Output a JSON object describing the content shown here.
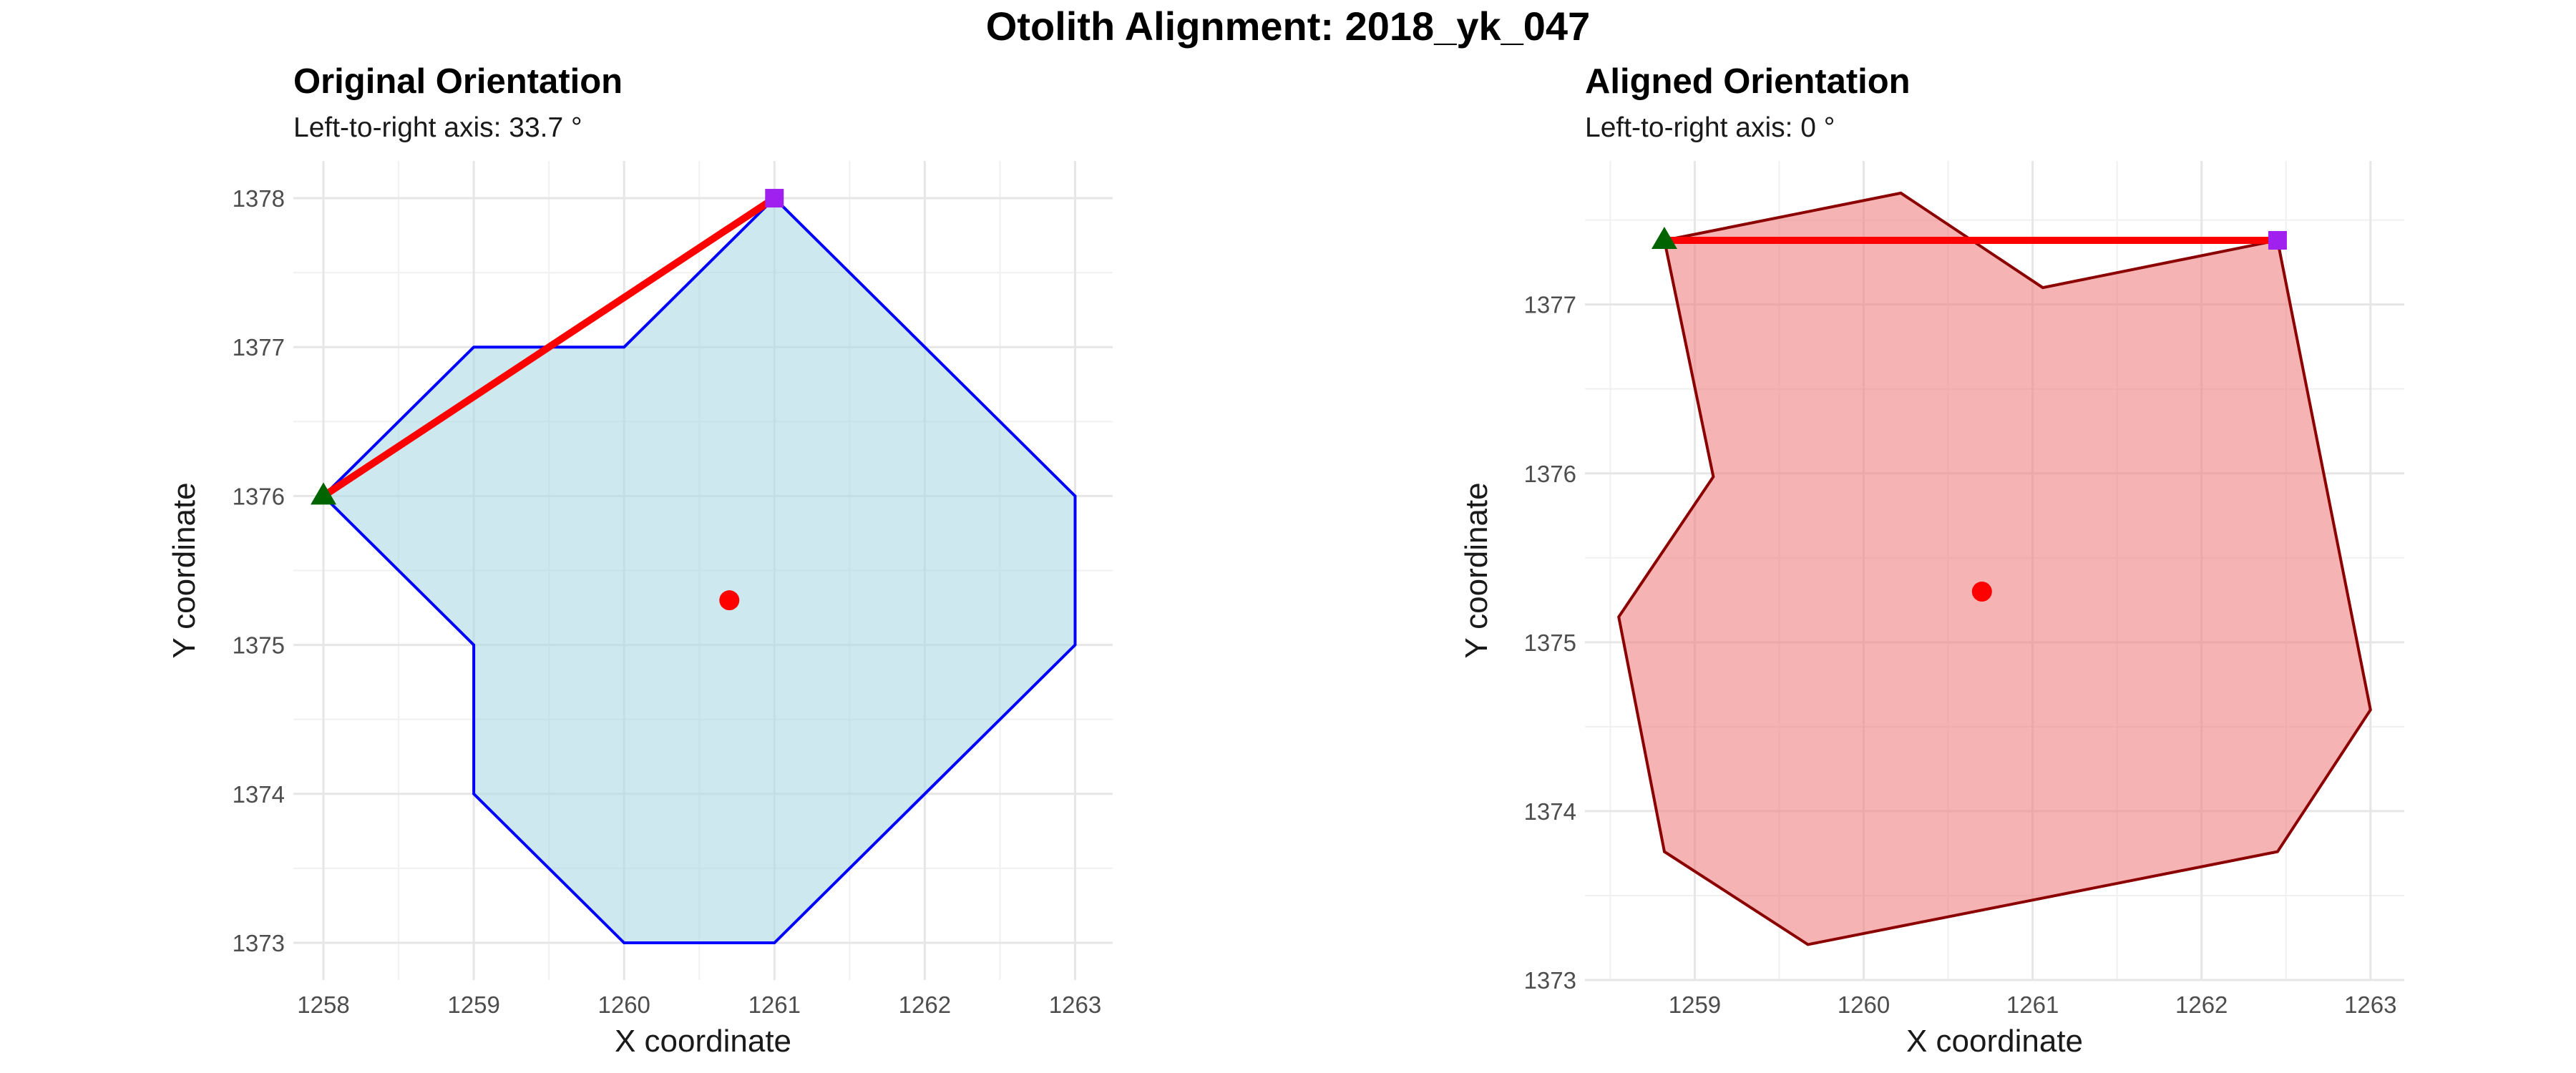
{
  "figure": {
    "title": "Otolith Alignment: 2018_yk_047"
  },
  "chart_data": [
    {
      "type": "polygon",
      "title": "Original Orientation",
      "subtitle": "Left-to-right axis: 33.7 °",
      "xlabel": "X coordinate",
      "ylabel": "Y coordinate",
      "xlim": [
        1257.8,
        1263.25
      ],
      "ylim": [
        1372.75,
        1378.25
      ],
      "x_ticks": [
        1258,
        1259,
        1260,
        1261,
        1262,
        1263
      ],
      "y_ticks": [
        1373,
        1374,
        1375,
        1376,
        1377,
        1378
      ],
      "grid": true,
      "colors": {
        "fill": "#add8e6",
        "fill_opacity": 0.6,
        "outline": "#0000ff",
        "axis_line": "#ff0000",
        "start_marker": "#006400",
        "end_marker": "#a020f0",
        "centroid": "#ff0000"
      },
      "polygon": [
        [
          1258,
          1376
        ],
        [
          1259,
          1377
        ],
        [
          1260,
          1377
        ],
        [
          1261,
          1378
        ],
        [
          1263,
          1376
        ],
        [
          1263,
          1375
        ],
        [
          1261,
          1373
        ],
        [
          1260,
          1373
        ],
        [
          1259,
          1374
        ],
        [
          1259,
          1375
        ],
        [
          1258,
          1376
        ]
      ],
      "axis_start": [
        1258,
        1376
      ],
      "axis_end": [
        1261,
        1378
      ],
      "centroid": [
        1260.7,
        1375.3
      ]
    },
    {
      "type": "polygon",
      "title": "Aligned Orientation",
      "subtitle": "Left-to-right axis: 0 °",
      "xlabel": "X coordinate",
      "ylabel": "Y coordinate",
      "xlim": [
        1258.35,
        1263.2
      ],
      "ylim": [
        1373,
        1377.85
      ],
      "x_ticks": [
        1259,
        1260,
        1261,
        1262,
        1263
      ],
      "y_ticks": [
        1373,
        1374,
        1375,
        1376,
        1377
      ],
      "grid": true,
      "colors": {
        "fill": "#f08080",
        "fill_opacity": 0.6,
        "outline": "#8b0000",
        "axis_line": "#ff0000",
        "start_marker": "#006400",
        "end_marker": "#a020f0",
        "centroid": "#ff0000"
      },
      "polygon": [
        [
          1258.82,
          1377.38
        ],
        [
          1260.22,
          1377.66
        ],
        [
          1261.06,
          1377.1
        ],
        [
          1262.45,
          1377.38
        ],
        [
          1263.0,
          1374.6
        ],
        [
          1262.45,
          1373.76
        ],
        [
          1259.67,
          1373.21
        ],
        [
          1258.82,
          1373.76
        ],
        [
          1258.55,
          1375.15
        ],
        [
          1259.11,
          1375.98
        ],
        [
          1258.82,
          1377.38
        ]
      ],
      "axis_start": [
        1258.82,
        1377.38
      ],
      "axis_end": [
        1262.45,
        1377.38
      ],
      "centroid": [
        1260.7,
        1375.3
      ]
    }
  ]
}
